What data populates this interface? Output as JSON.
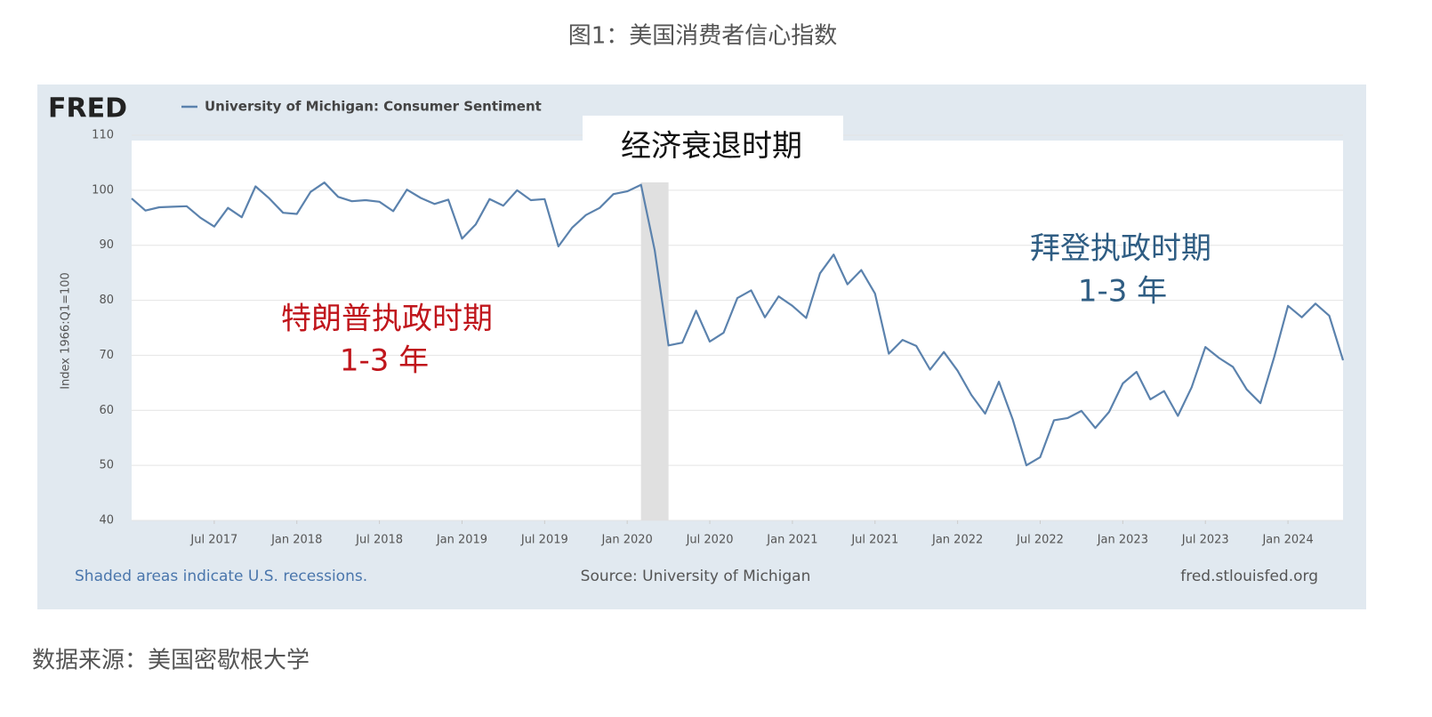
{
  "page_title": "图1：美国消费者信心指数",
  "chart_data": {
    "type": "line",
    "logo": "FRED",
    "ylabel": "Index 1966:Q1=100",
    "x": [
      "2017-01",
      "2017-02",
      "2017-03",
      "2017-04",
      "2017-05",
      "2017-06",
      "2017-07",
      "2017-08",
      "2017-09",
      "2017-10",
      "2017-11",
      "2017-12",
      "2018-01",
      "2018-02",
      "2018-03",
      "2018-04",
      "2018-05",
      "2018-06",
      "2018-07",
      "2018-08",
      "2018-09",
      "2018-10",
      "2018-11",
      "2018-12",
      "2019-01",
      "2019-02",
      "2019-03",
      "2019-04",
      "2019-05",
      "2019-06",
      "2019-07",
      "2019-08",
      "2019-09",
      "2019-10",
      "2019-11",
      "2019-12",
      "2020-01",
      "2020-02",
      "2020-03",
      "2020-04",
      "2020-05",
      "2020-06",
      "2020-07",
      "2020-08",
      "2020-09",
      "2020-10",
      "2020-11",
      "2020-12",
      "2021-01",
      "2021-02",
      "2021-03",
      "2021-04",
      "2021-05",
      "2021-06",
      "2021-07",
      "2021-08",
      "2021-09",
      "2021-10",
      "2021-11",
      "2021-12",
      "2022-01",
      "2022-02",
      "2022-03",
      "2022-04",
      "2022-05",
      "2022-06",
      "2022-07",
      "2022-08",
      "2022-09",
      "2022-10",
      "2022-11",
      "2022-12",
      "2023-01",
      "2023-02",
      "2023-03",
      "2023-04",
      "2023-05",
      "2023-06",
      "2023-07",
      "2023-08",
      "2023-09",
      "2023-10",
      "2023-11",
      "2023-12",
      "2024-01",
      "2024-02",
      "2024-03",
      "2024-04",
      "2024-05"
    ],
    "series": [
      {
        "name": "University of Michigan: Consumer Sentiment",
        "color": "#5b82ad",
        "values": [
          98.5,
          96.3,
          96.9,
          97.0,
          97.1,
          95.0,
          93.4,
          96.8,
          95.1,
          100.7,
          98.5,
          95.9,
          95.7,
          99.7,
          101.4,
          98.8,
          98.0,
          98.2,
          97.9,
          96.2,
          100.1,
          98.6,
          97.5,
          98.3,
          91.2,
          93.8,
          98.4,
          97.2,
          100.0,
          98.2,
          98.4,
          89.8,
          93.2,
          95.5,
          96.8,
          99.3,
          99.8,
          101.0,
          89.1,
          71.8,
          72.3,
          78.1,
          72.5,
          74.1,
          80.4,
          81.8,
          76.9,
          80.7,
          79.0,
          76.8,
          84.9,
          88.3,
          82.9,
          85.5,
          81.2,
          70.3,
          72.8,
          71.7,
          67.4,
          70.6,
          67.2,
          62.8,
          59.4,
          65.2,
          58.4,
          50.0,
          51.5,
          58.2,
          58.6,
          59.9,
          56.8,
          59.7,
          64.9,
          67.0,
          62.0,
          63.5,
          59.0,
          64.2,
          71.5,
          69.5,
          67.9,
          63.8,
          61.3,
          69.7,
          79.0,
          76.9,
          79.4,
          77.2,
          69.1
        ]
      }
    ],
    "xlim": [
      "2017-01",
      "2024-05"
    ],
    "xticks": [
      {
        "value": "2017-07",
        "label": "Jul 2017"
      },
      {
        "value": "2018-01",
        "label": "Jan 2018"
      },
      {
        "value": "2018-07",
        "label": "Jul 2018"
      },
      {
        "value": "2019-01",
        "label": "Jan 2019"
      },
      {
        "value": "2019-07",
        "label": "Jul 2019"
      },
      {
        "value": "2020-01",
        "label": "Jan 2020"
      },
      {
        "value": "2020-07",
        "label": "Jul 2020"
      },
      {
        "value": "2021-01",
        "label": "Jan 2021"
      },
      {
        "value": "2021-07",
        "label": "Jul 2021"
      },
      {
        "value": "2022-01",
        "label": "Jan 2022"
      },
      {
        "value": "2022-07",
        "label": "Jul 2022"
      },
      {
        "value": "2023-01",
        "label": "Jan 2023"
      },
      {
        "value": "2023-07",
        "label": "Jul 2023"
      },
      {
        "value": "2024-01",
        "label": "Jan 2024"
      }
    ],
    "ylim": [
      40,
      110
    ],
    "yticks": [
      40,
      50,
      60,
      70,
      80,
      90,
      100,
      110
    ],
    "grid": true,
    "recessions": [
      {
        "start": "2020-02",
        "end": "2020-04"
      }
    ],
    "annotations": [
      {
        "text": "经济衰退时期",
        "color": "#111111"
      },
      {
        "text": "特朗普执政时期",
        "color": "#c0161c"
      },
      {
        "text": "1-3 年",
        "color": "#c0161c"
      },
      {
        "text": "拜登执政时期",
        "color": "#2f5d83"
      },
      {
        "text": "1-3 年",
        "color": "#2f5d83"
      }
    ],
    "footer_left": "Shaded areas indicate U.S. recessions.",
    "footer_center": "Source: University of Michigan",
    "footer_right": "fred.stlouisfed.org"
  },
  "source": "数据来源：美国密歇根大学"
}
